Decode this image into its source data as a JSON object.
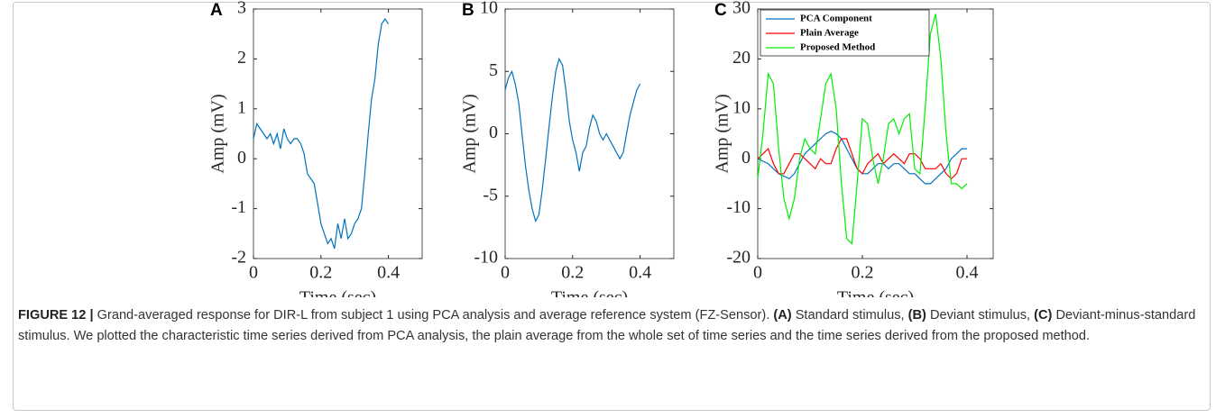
{
  "chart_data": [
    {
      "type": "line",
      "panel_label": "A",
      "xlabel": "Time (sec)",
      "ylabel": "Amp (mV)",
      "xlim": [
        0,
        0.5
      ],
      "xticks": [
        0,
        0.2,
        0.4
      ],
      "ylim": [
        -2,
        3
      ],
      "yticks": [
        -2,
        -1,
        0,
        1,
        2,
        3
      ],
      "color": "#0072BD",
      "x": [
        0,
        0.01,
        0.02,
        0.03,
        0.04,
        0.05,
        0.06,
        0.07,
        0.08,
        0.09,
        0.1,
        0.11,
        0.12,
        0.13,
        0.14,
        0.15,
        0.16,
        0.17,
        0.18,
        0.19,
        0.2,
        0.21,
        0.22,
        0.23,
        0.24,
        0.25,
        0.26,
        0.27,
        0.28,
        0.29,
        0.3,
        0.31,
        0.32,
        0.33,
        0.34,
        0.35,
        0.36,
        0.37,
        0.38,
        0.39,
        0.4
      ],
      "values": [
        0.4,
        0.7,
        0.6,
        0.5,
        0.4,
        0.5,
        0.3,
        0.5,
        0.2,
        0.6,
        0.4,
        0.3,
        0.4,
        0.4,
        0.3,
        0.1,
        -0.3,
        -0.4,
        -0.5,
        -0.9,
        -1.3,
        -1.5,
        -1.7,
        -1.6,
        -1.8,
        -1.3,
        -1.6,
        -1.2,
        -1.6,
        -1.5,
        -1.3,
        -1.2,
        -1.0,
        -0.3,
        0.5,
        1.2,
        1.6,
        2.3,
        2.7,
        2.8,
        2.7
      ]
    },
    {
      "type": "line",
      "panel_label": "B",
      "xlabel": "Time (sec)",
      "ylabel": "Amp (mV)",
      "xlim": [
        0,
        0.5
      ],
      "xticks": [
        0,
        0.2,
        0.4
      ],
      "ylim": [
        -10,
        10
      ],
      "yticks": [
        -10,
        -5,
        0,
        5,
        10
      ],
      "color": "#0072BD",
      "x": [
        0,
        0.01,
        0.02,
        0.03,
        0.04,
        0.05,
        0.06,
        0.07,
        0.08,
        0.09,
        0.1,
        0.11,
        0.12,
        0.13,
        0.14,
        0.15,
        0.16,
        0.17,
        0.18,
        0.19,
        0.2,
        0.21,
        0.22,
        0.23,
        0.24,
        0.25,
        0.26,
        0.27,
        0.28,
        0.29,
        0.3,
        0.31,
        0.32,
        0.33,
        0.34,
        0.35,
        0.36,
        0.37,
        0.38,
        0.39,
        0.4
      ],
      "values": [
        3.5,
        4.5,
        5,
        4,
        2.5,
        0,
        -2.5,
        -4.5,
        -6,
        -7,
        -6.5,
        -4.5,
        -2,
        0.5,
        3,
        5,
        6,
        5.5,
        3.5,
        1,
        -0.5,
        -1.5,
        -3,
        -1.5,
        -1,
        0.5,
        1.5,
        1,
        0,
        -0.5,
        0,
        -0.5,
        -1,
        -1.5,
        -2,
        -1.5,
        0,
        1.5,
        2.5,
        3.5,
        4
      ]
    },
    {
      "type": "line",
      "panel_label": "C",
      "xlabel": "Time (sec)",
      "ylabel": "Amp (mV)",
      "xlim": [
        0,
        0.45
      ],
      "xticks": [
        0,
        0.2,
        0.4
      ],
      "ylim": [
        -20,
        30
      ],
      "yticks": [
        -20,
        -10,
        0,
        10,
        20,
        30
      ],
      "legend": "upper left",
      "x": [
        0,
        0.01,
        0.02,
        0.03,
        0.04,
        0.05,
        0.06,
        0.07,
        0.08,
        0.09,
        0.1,
        0.11,
        0.12,
        0.13,
        0.14,
        0.15,
        0.16,
        0.17,
        0.18,
        0.19,
        0.2,
        0.21,
        0.22,
        0.23,
        0.24,
        0.25,
        0.26,
        0.27,
        0.28,
        0.29,
        0.3,
        0.31,
        0.32,
        0.33,
        0.34,
        0.35,
        0.36,
        0.37,
        0.38,
        0.39,
        0.4
      ],
      "series": [
        {
          "name": "PCA Component",
          "color": "#0072BD",
          "values": [
            0,
            -0.5,
            -1,
            -2,
            -3,
            -3.5,
            -4,
            -3,
            -1,
            1,
            2,
            3,
            4,
            5,
            5.5,
            5,
            4,
            2,
            0,
            -2,
            -3,
            -3,
            -2,
            -1,
            -1,
            -2,
            -1,
            -1,
            -2,
            -3,
            -3,
            -4,
            -5,
            -5,
            -4,
            -3,
            -2,
            0,
            1,
            2,
            2
          ]
        },
        {
          "name": "Plain Average",
          "color": "#FF0000",
          "values": [
            0,
            1,
            2,
            -1,
            -3,
            -3,
            -1,
            1,
            1,
            0,
            -1,
            -2,
            0,
            -1,
            -1,
            2,
            4,
            4,
            1,
            -2,
            -3,
            -1,
            0,
            1,
            -1,
            0,
            1,
            0,
            -1,
            1,
            1,
            0,
            -2,
            -2,
            -2,
            -1,
            -3,
            -4,
            -3,
            0,
            0
          ]
        },
        {
          "name": "Proposed Method",
          "color": "#00EE00",
          "values": [
            -4,
            5,
            17,
            15,
            2,
            -8,
            -12,
            -8,
            0,
            4,
            2,
            1,
            8,
            15,
            17,
            10,
            -5,
            -16,
            -17,
            -5,
            8,
            7,
            0,
            -5,
            0,
            7,
            8,
            5,
            8,
            9,
            -2,
            -3,
            10,
            25,
            29,
            20,
            5,
            -5,
            -5,
            -6,
            -5
          ]
        }
      ]
    }
  ],
  "caption": {
    "label": "FIGURE 12 |",
    "parts": [
      {
        "text": " Grand-averaged response for DIR-L from subject 1 using PCA analysis and average reference system (FZ-Sensor). ",
        "bold": false
      },
      {
        "text": "(A)",
        "bold": true
      },
      {
        "text": " Standard stimulus, ",
        "bold": false
      },
      {
        "text": "(B)",
        "bold": true
      },
      {
        "text": " Deviant stimulus, ",
        "bold": false
      },
      {
        "text": "(C)",
        "bold": true
      },
      {
        "text": " Deviant-minus-standard stimulus. We plotted the characteristic time series derived from PCA analysis, the plain average from the whole set of time series and the time series derived from the proposed method.",
        "bold": false
      }
    ]
  }
}
